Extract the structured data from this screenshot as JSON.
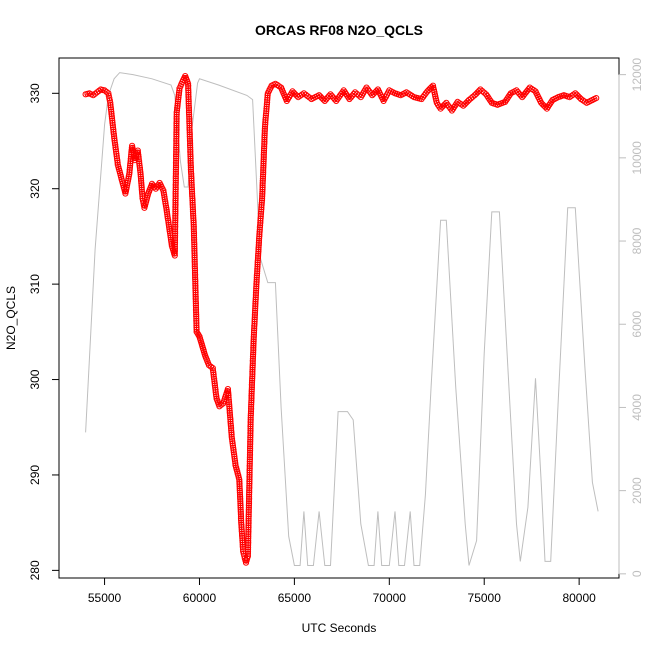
{
  "chart_data": {
    "type": "line",
    "title": "ORCAS RF08 N2O_QCLS",
    "xlabel": "UTC Seconds",
    "ylabel": "N2O_QCLS",
    "xlim": [
      52600,
      82100
    ],
    "ylim": [
      279.2,
      333.7
    ],
    "y2lim": [
      -100,
      12400
    ],
    "x_ticks": [
      55000,
      60000,
      65000,
      70000,
      75000,
      80000
    ],
    "y_ticks": [
      280,
      290,
      300,
      310,
      320,
      330
    ],
    "y2_ticks": [
      0,
      2000,
      4000,
      6000,
      8000,
      10000,
      12000
    ],
    "grid": false,
    "colors": {
      "n2o": "#ff0000",
      "altitude": "#bebebe",
      "axis": "#000000",
      "axis2": "#bebebe"
    },
    "series": [
      {
        "marker": "open-circle",
        "axis": "left",
        "points": [
          [
            54000,
            329.9
          ],
          [
            54200,
            330.0
          ],
          [
            54400,
            329.8
          ],
          [
            54600,
            330.1
          ],
          [
            54800,
            330.4
          ],
          [
            55000,
            330.3
          ],
          [
            55200,
            330.0
          ],
          [
            55300,
            329.0
          ],
          [
            55500,
            325.5
          ],
          [
            55700,
            322.5
          ],
          [
            55900,
            321.0
          ],
          [
            56100,
            319.5
          ],
          [
            56300,
            321.5
          ],
          [
            56450,
            324.5
          ],
          [
            56600,
            323.0
          ],
          [
            56750,
            324.0
          ],
          [
            56900,
            321.5
          ],
          [
            57000,
            319.0
          ],
          [
            57100,
            318.0
          ],
          [
            57300,
            319.5
          ],
          [
            57500,
            320.5
          ],
          [
            57700,
            320.0
          ],
          [
            57900,
            320.6
          ],
          [
            58100,
            319.8
          ],
          [
            58250,
            318.0
          ],
          [
            58400,
            316.0
          ],
          [
            58550,
            314.0
          ],
          [
            58700,
            313.0
          ],
          [
            58800,
            328.0
          ],
          [
            58950,
            330.5
          ],
          [
            59100,
            331.2
          ],
          [
            59250,
            331.8
          ],
          [
            59400,
            331.0
          ],
          [
            59550,
            322.0
          ],
          [
            59700,
            316.0
          ],
          [
            59850,
            305.0
          ],
          [
            60000,
            304.5
          ],
          [
            60150,
            303.5
          ],
          [
            60300,
            302.5
          ],
          [
            60500,
            301.5
          ],
          [
            60700,
            301.2
          ],
          [
            60900,
            298.0
          ],
          [
            61050,
            297.2
          ],
          [
            61250,
            297.5
          ],
          [
            61500,
            299.0
          ],
          [
            61700,
            294.0
          ],
          [
            61900,
            291.0
          ],
          [
            62100,
            289.5
          ],
          [
            62200,
            285.0
          ],
          [
            62300,
            282.0
          ],
          [
            62450,
            280.8
          ],
          [
            62550,
            281.5
          ],
          [
            62700,
            296.0
          ],
          [
            62850,
            304.0
          ],
          [
            63000,
            310.0
          ],
          [
            63150,
            315.0
          ],
          [
            63300,
            319.0
          ],
          [
            63450,
            326.5
          ],
          [
            63600,
            330.0
          ],
          [
            63800,
            330.8
          ],
          [
            64000,
            331.0
          ],
          [
            64300,
            330.6
          ],
          [
            64600,
            329.2
          ],
          [
            64900,
            330.2
          ],
          [
            65200,
            329.6
          ],
          [
            65500,
            330.0
          ],
          [
            65900,
            329.4
          ],
          [
            66300,
            329.8
          ],
          [
            66600,
            329.2
          ],
          [
            66900,
            329.9
          ],
          [
            67200,
            329.2
          ],
          [
            67600,
            330.3
          ],
          [
            67900,
            329.4
          ],
          [
            68200,
            330.1
          ],
          [
            68500,
            329.6
          ],
          [
            68800,
            330.6
          ],
          [
            69100,
            329.8
          ],
          [
            69400,
            330.4
          ],
          [
            69700,
            329.2
          ],
          [
            70000,
            330.3
          ],
          [
            70300,
            330.0
          ],
          [
            70600,
            329.8
          ],
          [
            70900,
            330.1
          ],
          [
            71300,
            329.6
          ],
          [
            71700,
            329.4
          ],
          [
            72000,
            330.2
          ],
          [
            72300,
            330.8
          ],
          [
            72500,
            329.0
          ],
          [
            72700,
            328.4
          ],
          [
            73000,
            329.0
          ],
          [
            73300,
            328.2
          ],
          [
            73600,
            329.1
          ],
          [
            73900,
            328.7
          ],
          [
            74200,
            329.3
          ],
          [
            74500,
            329.8
          ],
          [
            74800,
            330.4
          ],
          [
            75100,
            329.9
          ],
          [
            75400,
            329.0
          ],
          [
            75700,
            328.8
          ],
          [
            76100,
            329.1
          ],
          [
            76400,
            330.0
          ],
          [
            76700,
            330.3
          ],
          [
            77000,
            329.6
          ],
          [
            77400,
            330.6
          ],
          [
            77700,
            330.2
          ],
          [
            78000,
            329.0
          ],
          [
            78300,
            328.4
          ],
          [
            78600,
            329.3
          ],
          [
            78900,
            329.6
          ],
          [
            79200,
            329.8
          ],
          [
            79500,
            329.6
          ],
          [
            79800,
            330.0
          ],
          [
            80100,
            329.4
          ],
          [
            80400,
            329.0
          ],
          [
            80700,
            329.3
          ],
          [
            80900,
            329.5
          ]
        ]
      },
      {
        "marker": "none",
        "axis": "right",
        "points": [
          [
            54000,
            3400
          ],
          [
            54500,
            7800
          ],
          [
            55000,
            10800
          ],
          [
            55200,
            11500
          ],
          [
            55500,
            11900
          ],
          [
            55800,
            12050
          ],
          [
            56500,
            12000
          ],
          [
            57500,
            11900
          ],
          [
            58500,
            11750
          ],
          [
            58700,
            11500
          ],
          [
            59000,
            9900
          ],
          [
            59200,
            9300
          ],
          [
            59400,
            9300
          ],
          [
            59600,
            10700
          ],
          [
            59900,
            11800
          ],
          [
            60000,
            11900
          ],
          [
            61000,
            11750
          ],
          [
            62500,
            11500
          ],
          [
            62800,
            11400
          ],
          [
            63000,
            9500
          ],
          [
            63200,
            7600
          ],
          [
            63600,
            7000
          ],
          [
            64000,
            7000
          ],
          [
            64300,
            4000
          ],
          [
            64700,
            900
          ],
          [
            65000,
            200
          ],
          [
            65300,
            200
          ],
          [
            65500,
            1500
          ],
          [
            65700,
            200
          ],
          [
            66000,
            200
          ],
          [
            66300,
            1500
          ],
          [
            66600,
            200
          ],
          [
            66900,
            200
          ],
          [
            67300,
            3900
          ],
          [
            67800,
            3900
          ],
          [
            68100,
            3700
          ],
          [
            68500,
            1200
          ],
          [
            68900,
            200
          ],
          [
            69200,
            200
          ],
          [
            69400,
            1500
          ],
          [
            69600,
            200
          ],
          [
            70000,
            200
          ],
          [
            70300,
            1500
          ],
          [
            70500,
            200
          ],
          [
            70800,
            200
          ],
          [
            71100,
            1500
          ],
          [
            71300,
            200
          ],
          [
            71600,
            200
          ],
          [
            71900,
            1900
          ],
          [
            72200,
            4500
          ],
          [
            72700,
            8500
          ],
          [
            73000,
            8500
          ],
          [
            73500,
            4500
          ],
          [
            74000,
            1200
          ],
          [
            74200,
            200
          ],
          [
            74600,
            800
          ],
          [
            75000,
            5300
          ],
          [
            75400,
            8700
          ],
          [
            75800,
            8700
          ],
          [
            76300,
            4500
          ],
          [
            76700,
            1200
          ],
          [
            76900,
            300
          ],
          [
            77300,
            1600
          ],
          [
            77700,
            4700
          ],
          [
            78000,
            2200
          ],
          [
            78200,
            300
          ],
          [
            78500,
            300
          ],
          [
            78900,
            4200
          ],
          [
            79400,
            8800
          ],
          [
            79800,
            8800
          ],
          [
            80300,
            5000
          ],
          [
            80700,
            2200
          ],
          [
            81000,
            1500
          ]
        ]
      }
    ]
  }
}
